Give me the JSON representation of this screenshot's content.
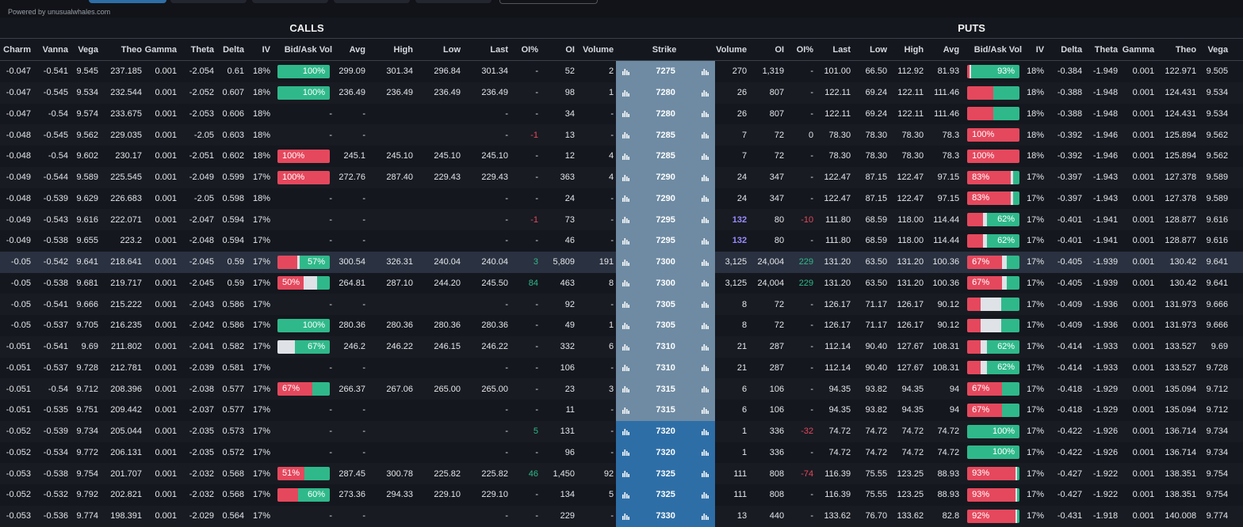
{
  "header": {
    "powered_by": "Powered by unusualwhales.com"
  },
  "table": {
    "calls_title": "CALLS",
    "puts_title": "PUTS",
    "columns": [
      "Charm",
      "Vanna",
      "Vega",
      "Theo",
      "Gamma",
      "Theta",
      "Delta",
      "IV",
      "Bid/Ask Vol",
      "Avg",
      "High",
      "Low",
      "Last",
      "OI%",
      "OI",
      "Volume",
      "Strike",
      "Volume",
      "OI",
      "OI%",
      "Last",
      "Low",
      "High",
      "Avg",
      "Bid/Ask Vol",
      "IV",
      "Delta",
      "Theta",
      "Gamma",
      "Theo",
      "Vega"
    ],
    "bar_colors": [
      "#e5485d",
      "#dfe2e7",
      "#2fb98a"
    ],
    "up_color": "#2fb98a",
    "down_color": "#e5485d",
    "unusual_color": "#9b8cff",
    "rows": [
      {
        "strike_color": "#6e8ba3",
        "cells": [
          "-0.047",
          "-0.541",
          "9.545",
          "237.185",
          "0.001",
          "-2.054",
          "0.61",
          "18%",
          {
            "label": "100%",
            "bar": [
              0,
              0,
              100
            ]
          },
          "299.09",
          "301.34",
          "296.84",
          "301.34",
          "-",
          "52",
          "2",
          "7275",
          "270",
          "1,319",
          "-",
          "101.00",
          "66.50",
          "112.92",
          "81.93",
          {
            "label": "93%",
            "bar": [
              4,
              3,
              93
            ]
          },
          "18%",
          "-0.384",
          "-1.949",
          "0.001",
          "122.971",
          "9.505"
        ]
      },
      {
        "strike_color": "#6e8ba3",
        "cells": [
          "-0.047",
          "-0.545",
          "9.534",
          "232.544",
          "0.001",
          "-2.052",
          "0.607",
          "18%",
          {
            "label": "100%",
            "bar": [
              0,
              0,
              100
            ]
          },
          "236.49",
          "236.49",
          "236.49",
          "236.49",
          "-",
          "98",
          "1",
          "7280",
          "26",
          "807",
          "-",
          "122.11",
          "69.24",
          "122.11",
          "111.46",
          {
            "bar": [
              50,
              0,
              50
            ]
          },
          "18%",
          "-0.388",
          "-1.948",
          "0.001",
          "124.431",
          "9.534"
        ]
      },
      {
        "strike_color": "#6e8ba3",
        "cells": [
          "-0.047",
          "-0.54",
          "9.574",
          "233.675",
          "0.001",
          "-2.053",
          "0.606",
          "18%",
          "-",
          "-",
          null,
          null,
          "-",
          "-",
          "34",
          "-",
          "7280",
          "26",
          "807",
          "-",
          "122.11",
          "69.24",
          "122.11",
          "111.46",
          {
            "bar": [
              50,
              0,
              50
            ]
          },
          "18%",
          "-0.388",
          "-1.948",
          "0.001",
          "124.431",
          "9.534"
        ]
      },
      {
        "strike_color": "#6e8ba3",
        "cells": [
          "-0.048",
          "-0.545",
          "9.562",
          "229.035",
          "0.001",
          "-2.05",
          "0.603",
          "18%",
          "-",
          "-",
          null,
          null,
          "-",
          "-1",
          "13",
          "-",
          "7285",
          "7",
          "72",
          "0",
          "78.30",
          "78.30",
          "78.30",
          "78.3",
          {
            "label": "100%",
            "bar": [
              100,
              0,
              0
            ]
          },
          "18%",
          "-0.392",
          "-1.946",
          "0.001",
          "125.894",
          "9.562"
        ]
      },
      {
        "strike_color": "#6e8ba3",
        "cells": [
          "-0.048",
          "-0.54",
          "9.602",
          "230.17",
          "0.001",
          "-2.051",
          "0.602",
          "18%",
          {
            "label": "100%",
            "bar": [
              100,
              0,
              0
            ]
          },
          "245.1",
          "245.10",
          "245.10",
          "245.10",
          "-",
          "12",
          "4",
          "7285",
          "7",
          "72",
          "-",
          "78.30",
          "78.30",
          "78.30",
          "78.3",
          {
            "label": "100%",
            "bar": [
              100,
              0,
              0
            ]
          },
          "18%",
          "-0.392",
          "-1.946",
          "0.001",
          "125.894",
          "9.562"
        ]
      },
      {
        "strike_color": "#6e8ba3",
        "cells": [
          "-0.049",
          "-0.544",
          "9.589",
          "225.545",
          "0.001",
          "-2.049",
          "0.599",
          "17%",
          {
            "label": "100%",
            "bar": [
              100,
              0,
              0
            ]
          },
          "272.76",
          "287.40",
          "229.43",
          "229.43",
          "-",
          "363",
          "4",
          "7290",
          "24",
          "347",
          "-",
          "122.47",
          "87.15",
          "122.47",
          "97.15",
          {
            "label": "83%",
            "bar": [
              83,
              5,
              12
            ]
          },
          "17%",
          "-0.397",
          "-1.943",
          "0.001",
          "127.378",
          "9.589"
        ]
      },
      {
        "strike_color": "#6e8ba3",
        "cells": [
          "-0.048",
          "-0.539",
          "9.629",
          "226.683",
          "0.001",
          "-2.05",
          "0.598",
          "18%",
          "-",
          "-",
          null,
          null,
          "-",
          "-",
          "24",
          "-",
          "7290",
          "24",
          "347",
          "-",
          "122.47",
          "87.15",
          "122.47",
          "97.15",
          {
            "label": "83%",
            "bar": [
              83,
              5,
              12
            ]
          },
          "17%",
          "-0.397",
          "-1.943",
          "0.001",
          "127.378",
          "9.589"
        ]
      },
      {
        "strike_color": "#6e8ba3",
        "cells": [
          "-0.049",
          "-0.543",
          "9.616",
          "222.071",
          "0.001",
          "-2.047",
          "0.594",
          "17%",
          "-",
          "-",
          null,
          null,
          "-",
          "-1",
          "73",
          "-",
          "7295",
          "132",
          "80",
          "-10",
          "111.80",
          "68.59",
          "118.00",
          "114.44",
          {
            "label": "62%",
            "bar": [
              30,
              8,
              62
            ]
          },
          "17%",
          "-0.401",
          "-1.941",
          "0.001",
          "128.877",
          "9.616"
        ]
      },
      {
        "strike_color": "#6e8ba3",
        "cells": [
          "-0.049",
          "-0.538",
          "9.655",
          "223.2",
          "0.001",
          "-2.048",
          "0.594",
          "17%",
          "-",
          "-",
          null,
          null,
          "-",
          "-",
          "46",
          "-",
          "7295",
          "132",
          "80",
          "-",
          "111.80",
          "68.59",
          "118.00",
          "114.44",
          {
            "label": "62%",
            "bar": [
              30,
              8,
              62
            ]
          },
          "17%",
          "-0.401",
          "-1.941",
          "0.001",
          "128.877",
          "9.616"
        ]
      },
      {
        "strike_color": "#6e8ba3",
        "highlight": true,
        "cells": [
          "-0.05",
          "-0.542",
          "9.641",
          "218.641",
          "0.001",
          "-2.045",
          "0.59",
          "17%",
          {
            "label": "57%",
            "bar": [
              38,
              5,
              57
            ]
          },
          "300.54",
          "326.31",
          "240.04",
          "240.04",
          "3",
          "5,809",
          "191",
          "7300",
          "3,125",
          "24,004",
          "229",
          "131.20",
          "63.50",
          "131.20",
          "100.36",
          {
            "label": "67%",
            "bar": [
              67,
              8,
              25
            ]
          },
          "17%",
          "-0.405",
          "-1.939",
          "0.001",
          "130.42",
          "9.641"
        ]
      },
      {
        "strike_color": "#6e8ba3",
        "cells": [
          "-0.05",
          "-0.538",
          "9.681",
          "219.717",
          "0.001",
          "-2.045",
          "0.59",
          "17%",
          {
            "label": "50%",
            "bar": [
              50,
              25,
              25
            ]
          },
          "264.81",
          "287.10",
          "244.20",
          "245.50",
          "84",
          "463",
          "8",
          "7300",
          "3,125",
          "24,004",
          "229",
          "131.20",
          "63.50",
          "131.20",
          "100.36",
          {
            "label": "67%",
            "bar": [
              67,
              8,
              25
            ]
          },
          "17%",
          "-0.405",
          "-1.939",
          "0.001",
          "130.42",
          "9.641"
        ]
      },
      {
        "strike_color": "#6e8ba3",
        "cells": [
          "-0.05",
          "-0.541",
          "9.666",
          "215.222",
          "0.001",
          "-2.043",
          "0.586",
          "17%",
          "-",
          "-",
          null,
          null,
          "-",
          "-",
          "92",
          "-",
          "7305",
          "8",
          "72",
          "-",
          "126.17",
          "71.17",
          "126.17",
          "90.12",
          {
            "bar": [
              25,
              40,
              35
            ]
          },
          "17%",
          "-0.409",
          "-1.936",
          "0.001",
          "131.973",
          "9.666"
        ]
      },
      {
        "strike_color": "#6e8ba3",
        "cells": [
          "-0.05",
          "-0.537",
          "9.705",
          "216.235",
          "0.001",
          "-2.042",
          "0.586",
          "17%",
          {
            "label": "100%",
            "bar": [
              0,
              0,
              100
            ]
          },
          "280.36",
          "280.36",
          "280.36",
          "280.36",
          "-",
          "49",
          "1",
          "7305",
          "8",
          "72",
          "-",
          "126.17",
          "71.17",
          "126.17",
          "90.12",
          {
            "bar": [
              25,
              40,
              35
            ]
          },
          "17%",
          "-0.409",
          "-1.936",
          "0.001",
          "131.973",
          "9.666"
        ]
      },
      {
        "strike_color": "#6e8ba3",
        "cells": [
          "-0.051",
          "-0.541",
          "9.69",
          "211.802",
          "0.001",
          "-2.041",
          "0.582",
          "17%",
          {
            "label": "67%",
            "bar": [
              0,
              33,
              67
            ]
          },
          "246.2",
          "246.22",
          "246.15",
          "246.22",
          "-",
          "332",
          "6",
          "7310",
          "21",
          "287",
          "-",
          "112.14",
          "90.40",
          "127.67",
          "108.31",
          {
            "label": "62%",
            "bar": [
              25,
              13,
              62
            ]
          },
          "17%",
          "-0.414",
          "-1.933",
          "0.001",
          "133.527",
          "9.69"
        ]
      },
      {
        "strike_color": "#6e8ba3",
        "cells": [
          "-0.051",
          "-0.537",
          "9.728",
          "212.781",
          "0.001",
          "-2.039",
          "0.581",
          "17%",
          "-",
          "-",
          null,
          null,
          "-",
          "-",
          "106",
          "-",
          "7310",
          "21",
          "287",
          "-",
          "112.14",
          "90.40",
          "127.67",
          "108.31",
          {
            "label": "62%",
            "bar": [
              25,
              13,
              62
            ]
          },
          "17%",
          "-0.414",
          "-1.933",
          "0.001",
          "133.527",
          "9.728"
        ]
      },
      {
        "strike_color": "#6e8ba3",
        "cells": [
          "-0.051",
          "-0.54",
          "9.712",
          "208.396",
          "0.001",
          "-2.038",
          "0.577",
          "17%",
          {
            "label": "67%",
            "bar": [
              67,
              0,
              33
            ]
          },
          "266.37",
          "267.06",
          "265.00",
          "265.00",
          "-",
          "23",
          "3",
          "7315",
          "6",
          "106",
          "-",
          "94.35",
          "93.82",
          "94.35",
          "94",
          {
            "label": "67%",
            "bar": [
              67,
              0,
              33
            ]
          },
          "17%",
          "-0.418",
          "-1.929",
          "0.001",
          "135.094",
          "9.712"
        ]
      },
      {
        "strike_color": "#6e8ba3",
        "cells": [
          "-0.051",
          "-0.535",
          "9.751",
          "209.442",
          "0.001",
          "-2.037",
          "0.577",
          "17%",
          "-",
          "-",
          null,
          null,
          "-",
          "-",
          "11",
          "-",
          "7315",
          "6",
          "106",
          "-",
          "94.35",
          "93.82",
          "94.35",
          "94",
          {
            "label": "67%",
            "bar": [
              67,
              0,
              33
            ]
          },
          "17%",
          "-0.418",
          "-1.929",
          "0.001",
          "135.094",
          "9.712"
        ]
      },
      {
        "strike_color": "#2e6ea6",
        "cells": [
          "-0.052",
          "-0.539",
          "9.734",
          "205.044",
          "0.001",
          "-2.035",
          "0.573",
          "17%",
          "-",
          "-",
          null,
          null,
          "-",
          "5",
          "131",
          "-",
          "7320",
          "1",
          "336",
          "-32",
          "74.72",
          "74.72",
          "74.72",
          "74.72",
          {
            "label": "100%",
            "bar": [
              0,
              0,
              100
            ]
          },
          "17%",
          "-0.422",
          "-1.926",
          "0.001",
          "136.714",
          "9.734"
        ]
      },
      {
        "strike_color": "#2e6ea6",
        "cells": [
          "-0.052",
          "-0.534",
          "9.772",
          "206.131",
          "0.001",
          "-2.035",
          "0.572",
          "17%",
          "-",
          "-",
          null,
          null,
          "-",
          "-",
          "96",
          "-",
          "7320",
          "1",
          "336",
          "-",
          "74.72",
          "74.72",
          "74.72",
          "74.72",
          {
            "label": "100%",
            "bar": [
              0,
              0,
              100
            ]
          },
          "17%",
          "-0.422",
          "-1.926",
          "0.001",
          "136.714",
          "9.734"
        ]
      },
      {
        "strike_color": "#2e6ea6",
        "cells": [
          "-0.053",
          "-0.538",
          "9.754",
          "201.707",
          "0.001",
          "-2.032",
          "0.568",
          "17%",
          {
            "label": "51%",
            "bar": [
              51,
              0,
              49
            ]
          },
          "287.45",
          "300.78",
          "225.82",
          "225.82",
          "46",
          "1,450",
          "92",
          "7325",
          "111",
          "808",
          "-74",
          "116.39",
          "75.55",
          "123.25",
          "88.93",
          {
            "label": "93%",
            "bar": [
              93,
              3,
              4
            ]
          },
          "17%",
          "-0.427",
          "-1.922",
          "0.001",
          "138.351",
          "9.754"
        ]
      },
      {
        "strike_color": "#2e6ea6",
        "cells": [
          "-0.052",
          "-0.532",
          "9.792",
          "202.821",
          "0.001",
          "-2.032",
          "0.568",
          "17%",
          {
            "label": "60%",
            "bar": [
              40,
              0,
              60
            ]
          },
          "273.36",
          "294.33",
          "229.10",
          "229.10",
          "-",
          "134",
          "5",
          "7325",
          "111",
          "808",
          "-",
          "116.39",
          "75.55",
          "123.25",
          "88.93",
          {
            "label": "93%",
            "bar": [
              93,
              3,
              4
            ]
          },
          "17%",
          "-0.427",
          "-1.922",
          "0.001",
          "138.351",
          "9.754"
        ]
      },
      {
        "strike_color": "#2e6ea6",
        "cells": [
          "-0.053",
          "-0.536",
          "9.774",
          "198.391",
          "0.001",
          "-2.029",
          "0.564",
          "17%",
          "-",
          "-",
          null,
          null,
          "-",
          "-",
          "229",
          "-",
          "7330",
          "13",
          "440",
          "-",
          "133.62",
          "76.70",
          "133.62",
          "82.8",
          {
            "label": "92%",
            "bar": [
              92,
              4,
              4
            ]
          },
          "17%",
          "-0.431",
          "-1.918",
          "0.001",
          "140.008",
          "9.774"
        ]
      }
    ]
  }
}
